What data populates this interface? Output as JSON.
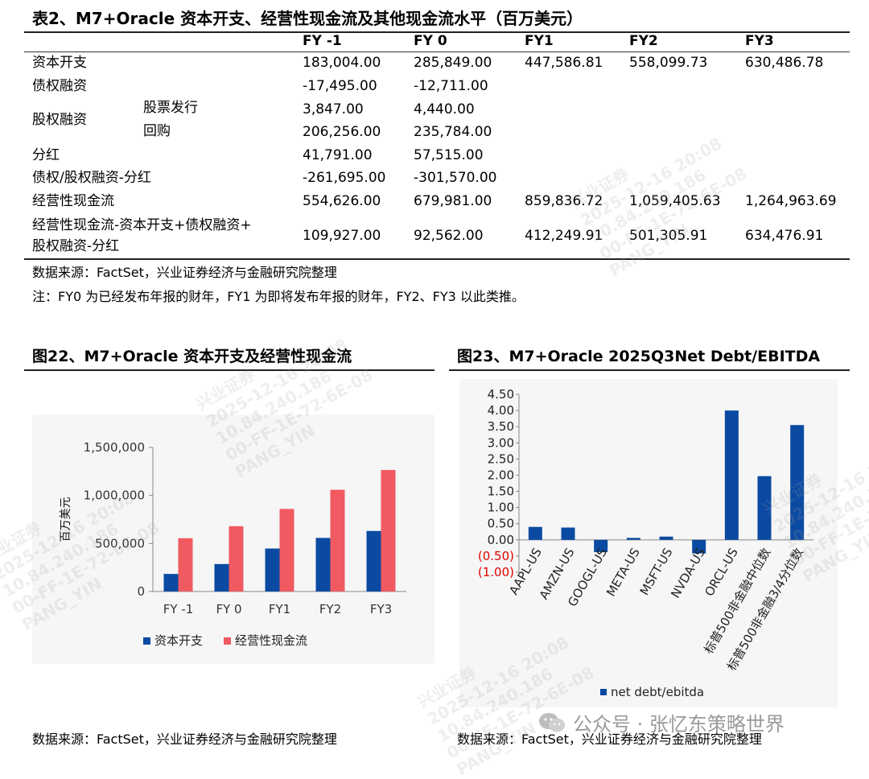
{
  "table": {
    "title": "表2、M7+Oracle 资本开支、经营性现金流及其他现金流水平（百万美元）",
    "columns": [
      "FY -1",
      "FY 0",
      "FY1",
      "FY2",
      "FY3"
    ],
    "rows": [
      {
        "label": "资本开支",
        "sub": "",
        "values": [
          "183,004.00",
          "285,849.00",
          "447,586.81",
          "558,099.73",
          "630,486.78"
        ]
      },
      {
        "label": "债权融资",
        "sub": "",
        "values": [
          "-17,495.00",
          "-12,711.00",
          "",
          "",
          ""
        ]
      },
      {
        "label": "",
        "sub": "股票发行",
        "values": [
          "3,847.00",
          "4,440.00",
          "",
          "",
          ""
        ]
      },
      {
        "label": "",
        "sub": "回购",
        "values": [
          "206,256.00",
          "235,784.00",
          "",
          "",
          ""
        ]
      },
      {
        "label": "分红",
        "sub": "",
        "values": [
          "41,791.00",
          "57,515.00",
          "",
          "",
          ""
        ]
      },
      {
        "label": "债权/股权融资-分红",
        "sub": "",
        "values": [
          "-261,695.00",
          "-301,570.00",
          "",
          "",
          ""
        ]
      },
      {
        "label": "经营性现金流",
        "sub": "",
        "values": [
          "554,626.00",
          "679,981.00",
          "859,836.72",
          "1,059,405.63",
          "1,264,963.69"
        ]
      }
    ],
    "group_label": "股权融资",
    "last_row": {
      "label_line1": "经营性现金流-资本开支+债权融资+",
      "label_line2": "股权融资-分红",
      "values": [
        "109,927.00",
        "92,562.00",
        "412,249.91",
        "501,305.91",
        "634,476.91"
      ]
    },
    "source": "数据来源：FactSet，兴业证券经济与金融研究院整理",
    "note": "注：FY0 为已经发布年报的财年，FY1 为即将发布年报的财年，FY2、FY3 以此类推。"
  },
  "watermark": {
    "lines": [
      "兴业证券",
      "2025-12-16 20:08",
      "10.84.240.186",
      "00-FF-1E-72-6E-08",
      "PANG_YIN"
    ]
  },
  "footer_brand": "公众号 · 张忆东策略世界",
  "chart_data": [
    {
      "type": "bar",
      "title": "图22、M7+Oracle 资本开支及经营性现金流",
      "categories": [
        "FY -1",
        "FY 0",
        "FY1",
        "FY2",
        "FY3"
      ],
      "series": [
        {
          "name": "资本开支",
          "color": "#0b4aa2",
          "values": [
            183004.0,
            285849.0,
            447586.81,
            558099.73,
            630486.78
          ]
        },
        {
          "name": "经营性现金流",
          "color": "#f05a60",
          "values": [
            554626.0,
            679981.0,
            859836.72,
            1059405.63,
            1264963.69
          ]
        }
      ],
      "ylabel": "百万美元",
      "ylim": [
        0,
        1500000
      ],
      "yticks": [
        "0",
        "500,000",
        "1,000,000",
        "1,500,000"
      ],
      "legend_position": "bottom",
      "source": "数据来源：FactSet，兴业证券经济与金融研究院整理"
    },
    {
      "type": "bar",
      "title": "图23、M7+Oracle 2025Q3Net Debt/EBITDA",
      "categories": [
        "AAPL-US",
        "AMZN-US",
        "GOOGL-US",
        "META-US",
        "MSFT-US",
        "NVDA-US",
        "ORCL-US",
        "标普500非金融中位数",
        "标普500非金融3/4分位数"
      ],
      "series": [
        {
          "name": "net debt/ebitda",
          "color": "#0b4aa2",
          "values": [
            0.4,
            0.38,
            -0.38,
            0.06,
            0.1,
            -0.42,
            4.0,
            1.97,
            3.55
          ]
        }
      ],
      "ylim": [
        -1.0,
        4.5
      ],
      "yticks": [
        "(1.00)",
        "(0.50)",
        "0.00",
        "0.50",
        "1.00",
        "1.50",
        "2.00",
        "2.50",
        "3.00",
        "3.50",
        "4.00",
        "4.50"
      ],
      "negative_tick_color": "#e00000",
      "legend_position": "bottom",
      "source": "数据来源：FactSet，兴业证券经济与金融研究院整理"
    }
  ]
}
